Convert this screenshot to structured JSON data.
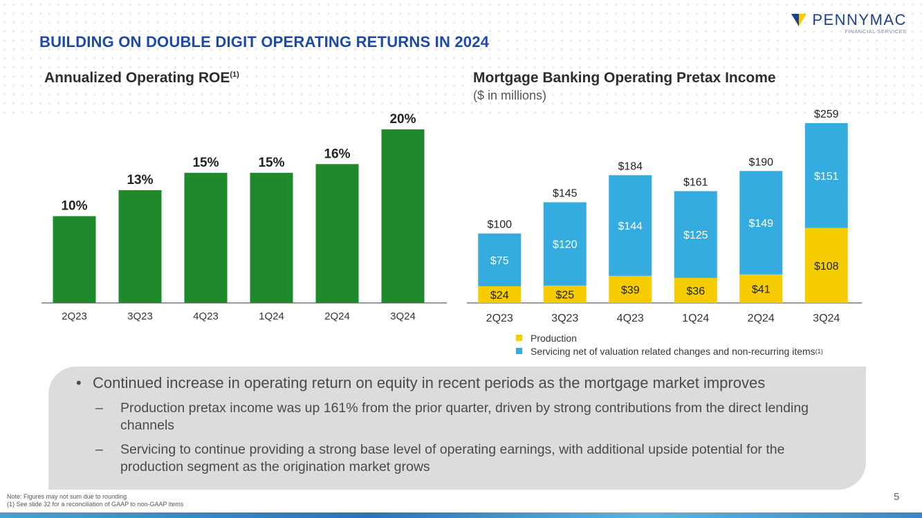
{
  "slide": {
    "title": "BUILDING ON DOUBLE DIGIT OPERATING RETURNS IN 2024",
    "page_number": "5"
  },
  "logo": {
    "name": "PENNYMAC",
    "tagline": "FINANCIAL SERVICES"
  },
  "colors": {
    "title_blue": "#1d4aa8",
    "roe_green": "#1f8a2c",
    "production_yellow": "#f5cc00",
    "servicing_blue": "#35ace0"
  },
  "chart_data": [
    {
      "type": "bar",
      "title": "Annualized Operating ROE",
      "title_superscript": "(1)",
      "categories": [
        "2Q23",
        "3Q23",
        "4Q23",
        "1Q24",
        "2Q24",
        "3Q24"
      ],
      "values": [
        10,
        13,
        15,
        15,
        16,
        20
      ],
      "labels": [
        "10%",
        "13%",
        "15%",
        "15%",
        "16%",
        "20%"
      ],
      "ylim": [
        0,
        22
      ],
      "grid": false
    },
    {
      "type": "bar",
      "stacked": true,
      "title": "Mortgage Banking Operating Pretax Income",
      "subtitle": "($ in millions)",
      "categories": [
        "2Q23",
        "3Q23",
        "4Q23",
        "1Q24",
        "2Q24",
        "3Q24"
      ],
      "series": [
        {
          "name": "Production",
          "values": [
            24,
            25,
            39,
            36,
            41,
            108
          ],
          "labels": [
            "$24",
            "$25",
            "$39",
            "$36",
            "$41",
            "$108"
          ]
        },
        {
          "name": "Servicing net of valuation related changes and non-recurring items",
          "legend_superscript": "(1)",
          "values": [
            75,
            120,
            144,
            125,
            149,
            151
          ],
          "labels": [
            "$75",
            "$120",
            "$144",
            "$125",
            "$149",
            "$151"
          ]
        }
      ],
      "totals": [
        100,
        145,
        184,
        161,
        190,
        259
      ],
      "total_labels": [
        "$100",
        "$145",
        "$184",
        "$161",
        "$190",
        "$259"
      ],
      "ylim": [
        0,
        260
      ],
      "grid": false,
      "legend_position": "bottom"
    }
  ],
  "bullets": {
    "main": "Continued increase in operating return on equity in recent periods as the mortgage market improves",
    "subs": [
      "Production pretax income was up 161% from the prior quarter, driven by strong contributions from the direct lending channels",
      "Servicing to continue providing a strong base level of operating earnings, with additional upside potential for the production segment as the origination market grows"
    ],
    "bullet_symbol": "•",
    "dash_symbol": "–"
  },
  "footnotes": {
    "note": "Note: Figures may not sum due to rounding",
    "reconciliation": "(1) See slide 32 for a reconciliation of GAAP to non-GAAP items"
  }
}
